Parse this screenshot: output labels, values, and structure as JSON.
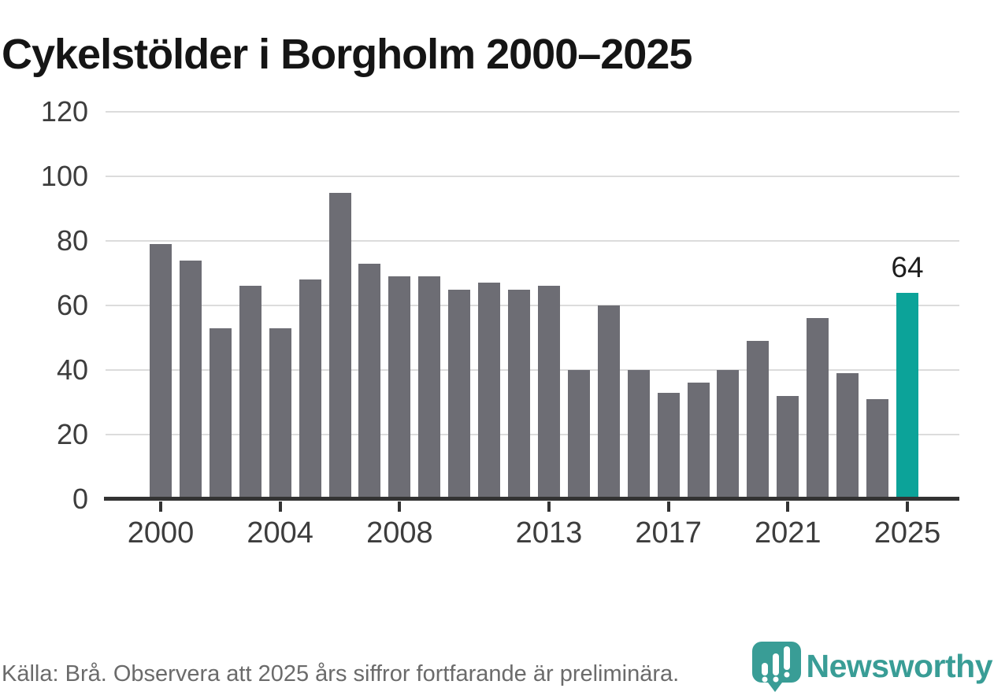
{
  "title": "Cykelstölder i Borgholm 2000–2025",
  "footer": {
    "source_note": "Källa: Brå. Observera att 2025 års siffror fortfarande är preliminära."
  },
  "logo": {
    "text": "Newsworthy",
    "icon": "newsworthy-pin-barchart-icon",
    "color": "#399d96"
  },
  "colors": {
    "background": "#ffffff",
    "bar": "#6d6d74",
    "highlight": "#0ca399",
    "axis": "#333333",
    "gridline": "#dcdcdc",
    "title_text": "#151515",
    "tick_text": "#3d3d3d",
    "annotation_text": "#1e1e1e",
    "footer_text": "#6b6b6b"
  },
  "chart_data": {
    "type": "bar",
    "title": "Cykelstölder i Borgholm 2000–2025",
    "categories": [
      "2000",
      "2001",
      "2002",
      "2003",
      "2004",
      "2005",
      "2006",
      "2007",
      "2008",
      "2009",
      "2010",
      "2011",
      "2012",
      "2013",
      "2014",
      "2015",
      "2016",
      "2017",
      "2018",
      "2019",
      "2020",
      "2021",
      "2022",
      "2023",
      "2024",
      "2025"
    ],
    "values": [
      79,
      74,
      53,
      66,
      53,
      68,
      95,
      73,
      69,
      69,
      65,
      67,
      65,
      66,
      40,
      60,
      40,
      33,
      36,
      40,
      49,
      32,
      56,
      39,
      31,
      64
    ],
    "highlight_index": 25,
    "annotation": {
      "index": 25,
      "label": "64"
    },
    "xlabel": "",
    "ylabel": "",
    "ylim": [
      0,
      120
    ],
    "yticks": [
      0,
      20,
      40,
      60,
      80,
      100,
      120
    ],
    "xticks": [
      "2000",
      "2004",
      "2008",
      "2013",
      "2017",
      "2021",
      "2025"
    ],
    "grid": "horizontal",
    "legend": "none",
    "bar_color": "#6d6d74",
    "highlight_color": "#0ca399"
  }
}
